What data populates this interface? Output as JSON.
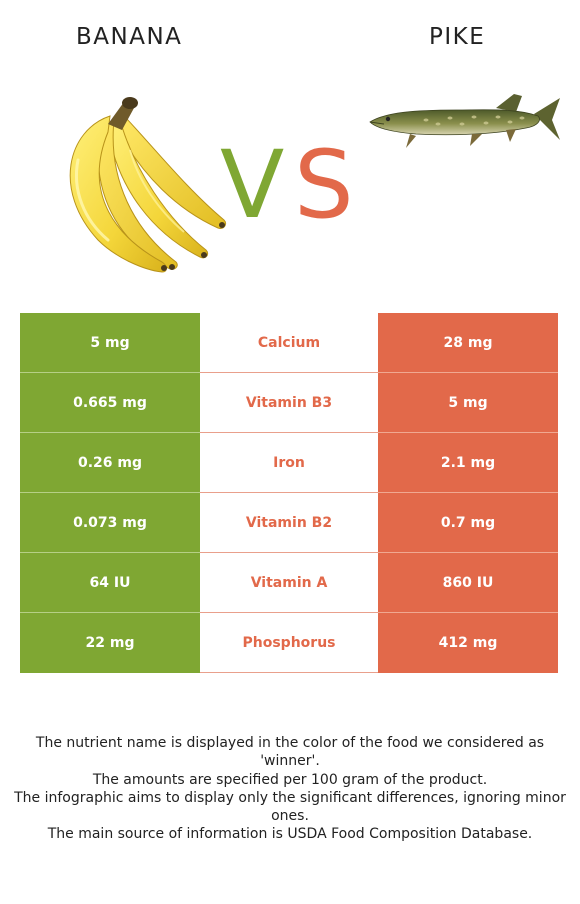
{
  "left_food": {
    "name": "BANANA",
    "icon": "banana-bunch-image",
    "color": "#7fa733"
  },
  "right_food": {
    "name": "PIKE",
    "icon": "pike-fish-image",
    "color": "#e2694a"
  },
  "vs": {
    "v": "V",
    "s": "S"
  },
  "nutrients": [
    {
      "name": "Calcium",
      "left": "5 mg",
      "right": "28 mg",
      "winner": "right"
    },
    {
      "name": "Vitamin B3",
      "left": "0.665 mg",
      "right": "5 mg",
      "winner": "right"
    },
    {
      "name": "Iron",
      "left": "0.26 mg",
      "right": "2.1 mg",
      "winner": "right"
    },
    {
      "name": "Vitamin B2",
      "left": "0.073 mg",
      "right": "0.7 mg",
      "winner": "right"
    },
    {
      "name": "Vitamin A",
      "left": "64 IU",
      "right": "860 IU",
      "winner": "right"
    },
    {
      "name": "Phosphorus",
      "left": "22 mg",
      "right": "412 mg",
      "winner": "right"
    }
  ],
  "notes": [
    "The nutrient name is displayed in the color of the food we considered as 'winner'.",
    "The amounts are specified per 100 gram of the product.",
    "The infographic aims to display only the significant differences, ignoring minor ones.",
    "The main source of information is USDA Food Composition Database."
  ]
}
